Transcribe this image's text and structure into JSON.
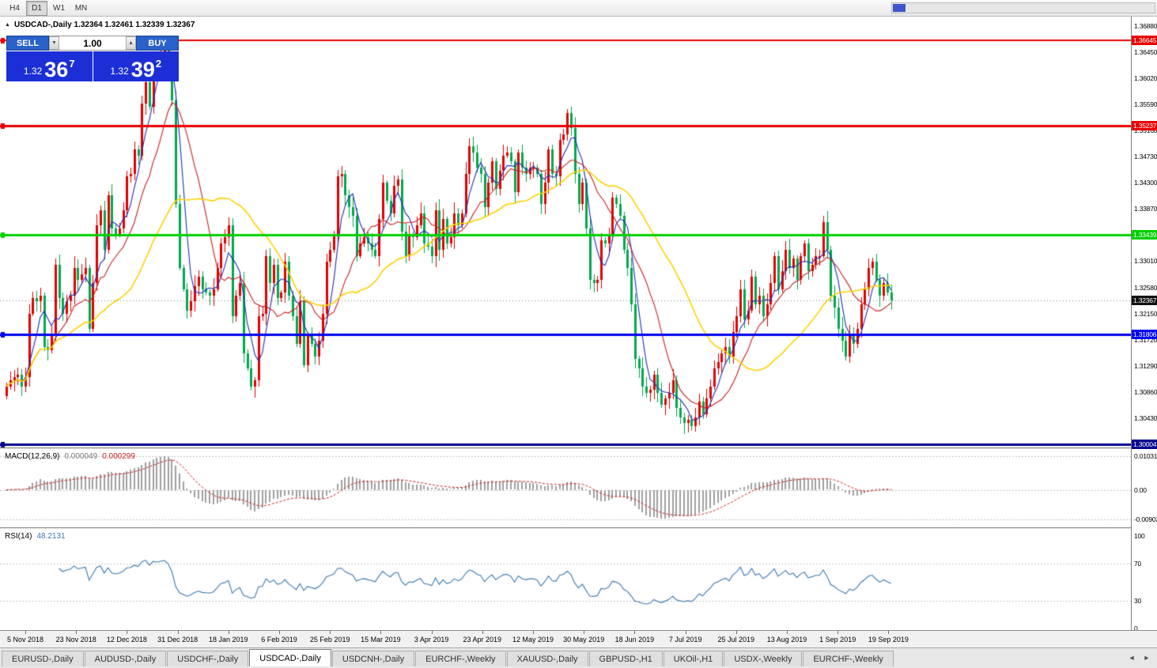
{
  "toolbar": {
    "timeframes": [
      {
        "label": "H4",
        "active": false
      },
      {
        "label": "D1",
        "active": true
      },
      {
        "label": "W1",
        "active": false
      },
      {
        "label": "MN",
        "active": false
      }
    ]
  },
  "window": {
    "collapse_icon": "▲",
    "title": "USDCAD-,Daily 1.32364 1.32461 1.32339 1.32367"
  },
  "trade_panel": {
    "sell_label": "SELL",
    "buy_label": "BUY",
    "volume": "1.00",
    "decrease_icon": "▼",
    "increase_icon": "▲",
    "sell_price": {
      "prefix": "1.32",
      "big": "36",
      "sup": "7"
    },
    "buy_price": {
      "prefix": "1.32",
      "big": "39",
      "sup": "2"
    },
    "colors": {
      "button_bg": "#2a62cc",
      "price_bg": "#1c2fd6"
    }
  },
  "tabs_bar": {
    "left_arrow": "◄",
    "right_arrow": "►",
    "tabs": [
      {
        "label": "EURUSD-,Daily",
        "active": false
      },
      {
        "label": "AUDUSD-,Daily",
        "active": false
      },
      {
        "label": "USDCHF-,Daily",
        "active": false
      },
      {
        "label": "USDCAD-,Daily",
        "active": true
      },
      {
        "label": "USDCNH-,Daily",
        "active": false
      },
      {
        "label": "EURCHF-,Weekly",
        "active": false
      },
      {
        "label": "XAUUSD-,Daily",
        "active": false
      },
      {
        "label": "GBPUSD-,H1",
        "active": false
      },
      {
        "label": "UKOil-,H1",
        "active": false
      },
      {
        "label": "USDX-,Weekly",
        "active": false
      },
      {
        "label": "EURCHF-,Weekly",
        "active": false
      }
    ]
  },
  "chart_data": {
    "type": "candlestick",
    "symbol": "USDCAD-",
    "timeframe": "Daily",
    "ohlc_current": {
      "open": "1.32364",
      "high": "1.32461",
      "low": "1.32339",
      "close": "1.32367"
    },
    "price_axis": {
      "ylim": [
        1.2995,
        1.3703
      ],
      "ticks": [
        "1.36880",
        "1.36450",
        "1.36020",
        "1.35590",
        "1.35160",
        "1.34730",
        "1.34300",
        "1.33870",
        "1.33440",
        "1.33010",
        "1.32580",
        "1.32150",
        "1.31720",
        "1.31290",
        "1.30860",
        "1.30430",
        "1.30000"
      ]
    },
    "levels": [
      {
        "value": 1.36645,
        "label": "1.36645",
        "color": "#e80000",
        "width": 2
      },
      {
        "value": 1.35237,
        "label": "1.35237",
        "color": "#e80000",
        "width": 3
      },
      {
        "value": 1.33439,
        "label": "1.33439",
        "color": "#00d000",
        "width": 3
      },
      {
        "value": 1.31806,
        "label": "1.31806",
        "color": "#0000f0",
        "width": 3
      },
      {
        "value": 1.30004,
        "label": "1.30004",
        "color": "#00008b",
        "width": 3
      }
    ],
    "current_price": {
      "value": 1.32367,
      "label": "1.32367"
    },
    "candle_colors": {
      "up": "#e00000",
      "down": "#00a84e"
    },
    "moving_averages": [
      {
        "period": 5,
        "color": "#2030b8"
      },
      {
        "period": 13,
        "color": "#c82020"
      },
      {
        "period": 34,
        "color": "#ffd200"
      }
    ],
    "closes": [
      1.3095,
      1.3105,
      1.311,
      1.3115,
      1.3095,
      1.311,
      1.3215,
      1.324,
      1.3235,
      1.3245,
      1.316,
      1.3155,
      1.318,
      1.3295,
      1.324,
      1.3215,
      1.3235,
      1.3245,
      1.329,
      1.327,
      1.328,
      1.329,
      1.319,
      1.3265,
      1.336,
      1.3385,
      1.332,
      1.341,
      1.3355,
      1.3345,
      1.3355,
      1.3385,
      1.344,
      1.3445,
      1.3485,
      1.3475,
      1.356,
      1.3595,
      1.3555,
      1.363,
      1.3625,
      1.364,
      1.3655,
      1.363,
      1.3565,
      1.3395,
      1.329,
      1.3255,
      1.322,
      1.3235,
      1.326,
      1.3275,
      1.3255,
      1.325,
      1.3245,
      1.3255,
      1.329,
      1.333,
      1.334,
      1.336,
      1.321,
      1.3245,
      1.3265,
      1.315,
      1.3125,
      1.3095,
      1.3105,
      1.321,
      1.3215,
      1.331,
      1.3265,
      1.3295,
      1.324,
      1.325,
      1.33,
      1.3245,
      1.321,
      1.3165,
      1.3235,
      1.313,
      1.318,
      1.3165,
      1.3145,
      1.317,
      1.3215,
      1.33,
      1.332,
      1.3345,
      1.344,
      1.3445,
      1.341,
      1.339,
      1.3375,
      1.331,
      1.333,
      1.334,
      1.333,
      1.332,
      1.331,
      1.337,
      1.343,
      1.34,
      1.338,
      1.3425,
      1.3435,
      1.335,
      1.331,
      1.3345,
      1.334,
      1.336,
      1.338,
      1.333,
      1.3325,
      1.331,
      1.3385,
      1.332,
      1.337,
      1.333,
      1.334,
      1.338,
      1.336,
      1.338,
      1.3445,
      1.349,
      1.348,
      1.3455,
      1.3445,
      1.339,
      1.343,
      1.3465,
      1.342,
      1.345,
      1.3475,
      1.348,
      1.3465,
      1.3415,
      1.348,
      1.3455,
      1.3445,
      1.3455,
      1.3455,
      1.3445,
      1.3395,
      1.343,
      1.3485,
      1.3445,
      1.344,
      1.35,
      1.351,
      1.3545,
      1.352,
      1.3445,
      1.3395,
      1.343,
      1.3355,
      1.327,
      1.3265,
      1.327,
      1.3335,
      1.333,
      1.3345,
      1.3405,
      1.3395,
      1.3375,
      1.332,
      1.329,
      1.323,
      1.314,
      1.3125,
      1.3095,
      1.3085,
      1.309,
      1.3115,
      1.3085,
      1.3065,
      1.3075,
      1.3085,
      1.3105,
      1.306,
      1.3045,
      1.3035,
      1.304,
      1.303,
      1.3045,
      1.307,
      1.305,
      1.3075,
      1.3095,
      1.3125,
      1.3135,
      1.315,
      1.316,
      1.3145,
      1.3185,
      1.321,
      1.3255,
      1.3205,
      1.322,
      1.3275,
      1.323,
      1.3245,
      1.321,
      1.323,
      1.3265,
      1.331,
      1.3255,
      1.3285,
      1.332,
      1.329,
      1.3305,
      1.327,
      1.331,
      1.333,
      1.3285,
      1.3295,
      1.331,
      1.331,
      1.3365,
      1.332,
      1.3245,
      1.3225,
      1.319,
      1.317,
      1.3145,
      1.318,
      1.3165,
      1.319,
      1.323,
      1.3255,
      1.329,
      1.33,
      1.327,
      1.3245,
      1.3265,
      1.325,
      1.3237
    ],
    "x_axis": {
      "dates": [
        "5 Nov 2018",
        "23 Nov 2018",
        "12 Dec 2018",
        "31 Dec 2018",
        "18 Jan 2019",
        "6 Feb 2019",
        "25 Feb 2019",
        "15 Mar 2019",
        "3 Apr 2019",
        "23 Apr 2019",
        "12 May 2019",
        "30 May 2019",
        "18 Jun 2019",
        "7 Jul 2019",
        "25 Jul 2019",
        "13 Aug 2019",
        "1 Sep 2019",
        "19 Sep 2019"
      ]
    },
    "macd": {
      "label": "MACD(12,26,9)",
      "values": [
        "0.000049",
        "0.000299"
      ],
      "params": [
        12,
        26,
        9
      ],
      "axis": [
        "0.010311",
        "0.00",
        "-0.0090203"
      ],
      "axis_values": [
        0.010311,
        0,
        -0.0090203
      ],
      "ylim": [
        -0.0115,
        0.0125
      ],
      "hist_color": "#a0a0a0",
      "signal_color": "#cc2020"
    },
    "rsi": {
      "label": "RSI(14)",
      "value": "48.2131",
      "period": 14,
      "axis": [
        "100",
        "70",
        "30",
        "0"
      ],
      "levels": [
        70,
        30
      ],
      "ylim": [
        0,
        100
      ],
      "color": "#3c78b0"
    }
  }
}
